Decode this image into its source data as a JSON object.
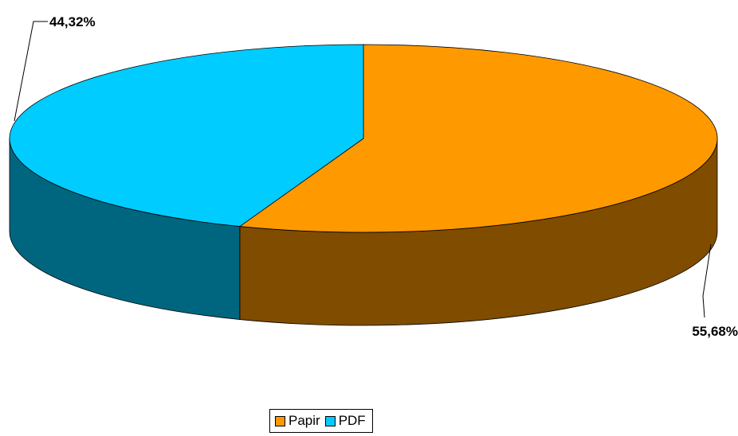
{
  "chart_data": {
    "type": "pie",
    "style": "3d",
    "legend_position": "bottom",
    "series": [
      {
        "name": "Papir",
        "value": 55.68,
        "label": "55,68%",
        "color": "#FF9900",
        "side_color": "#7F4C00"
      },
      {
        "name": "PDF",
        "value": 44.32,
        "label": "44,32%",
        "color": "#00CCFF",
        "side_color": "#006680"
      }
    ]
  },
  "legend": {
    "items": [
      {
        "label": "Papir",
        "color": "#FF9900"
      },
      {
        "label": "PDF",
        "color": "#00CCFF"
      }
    ]
  }
}
